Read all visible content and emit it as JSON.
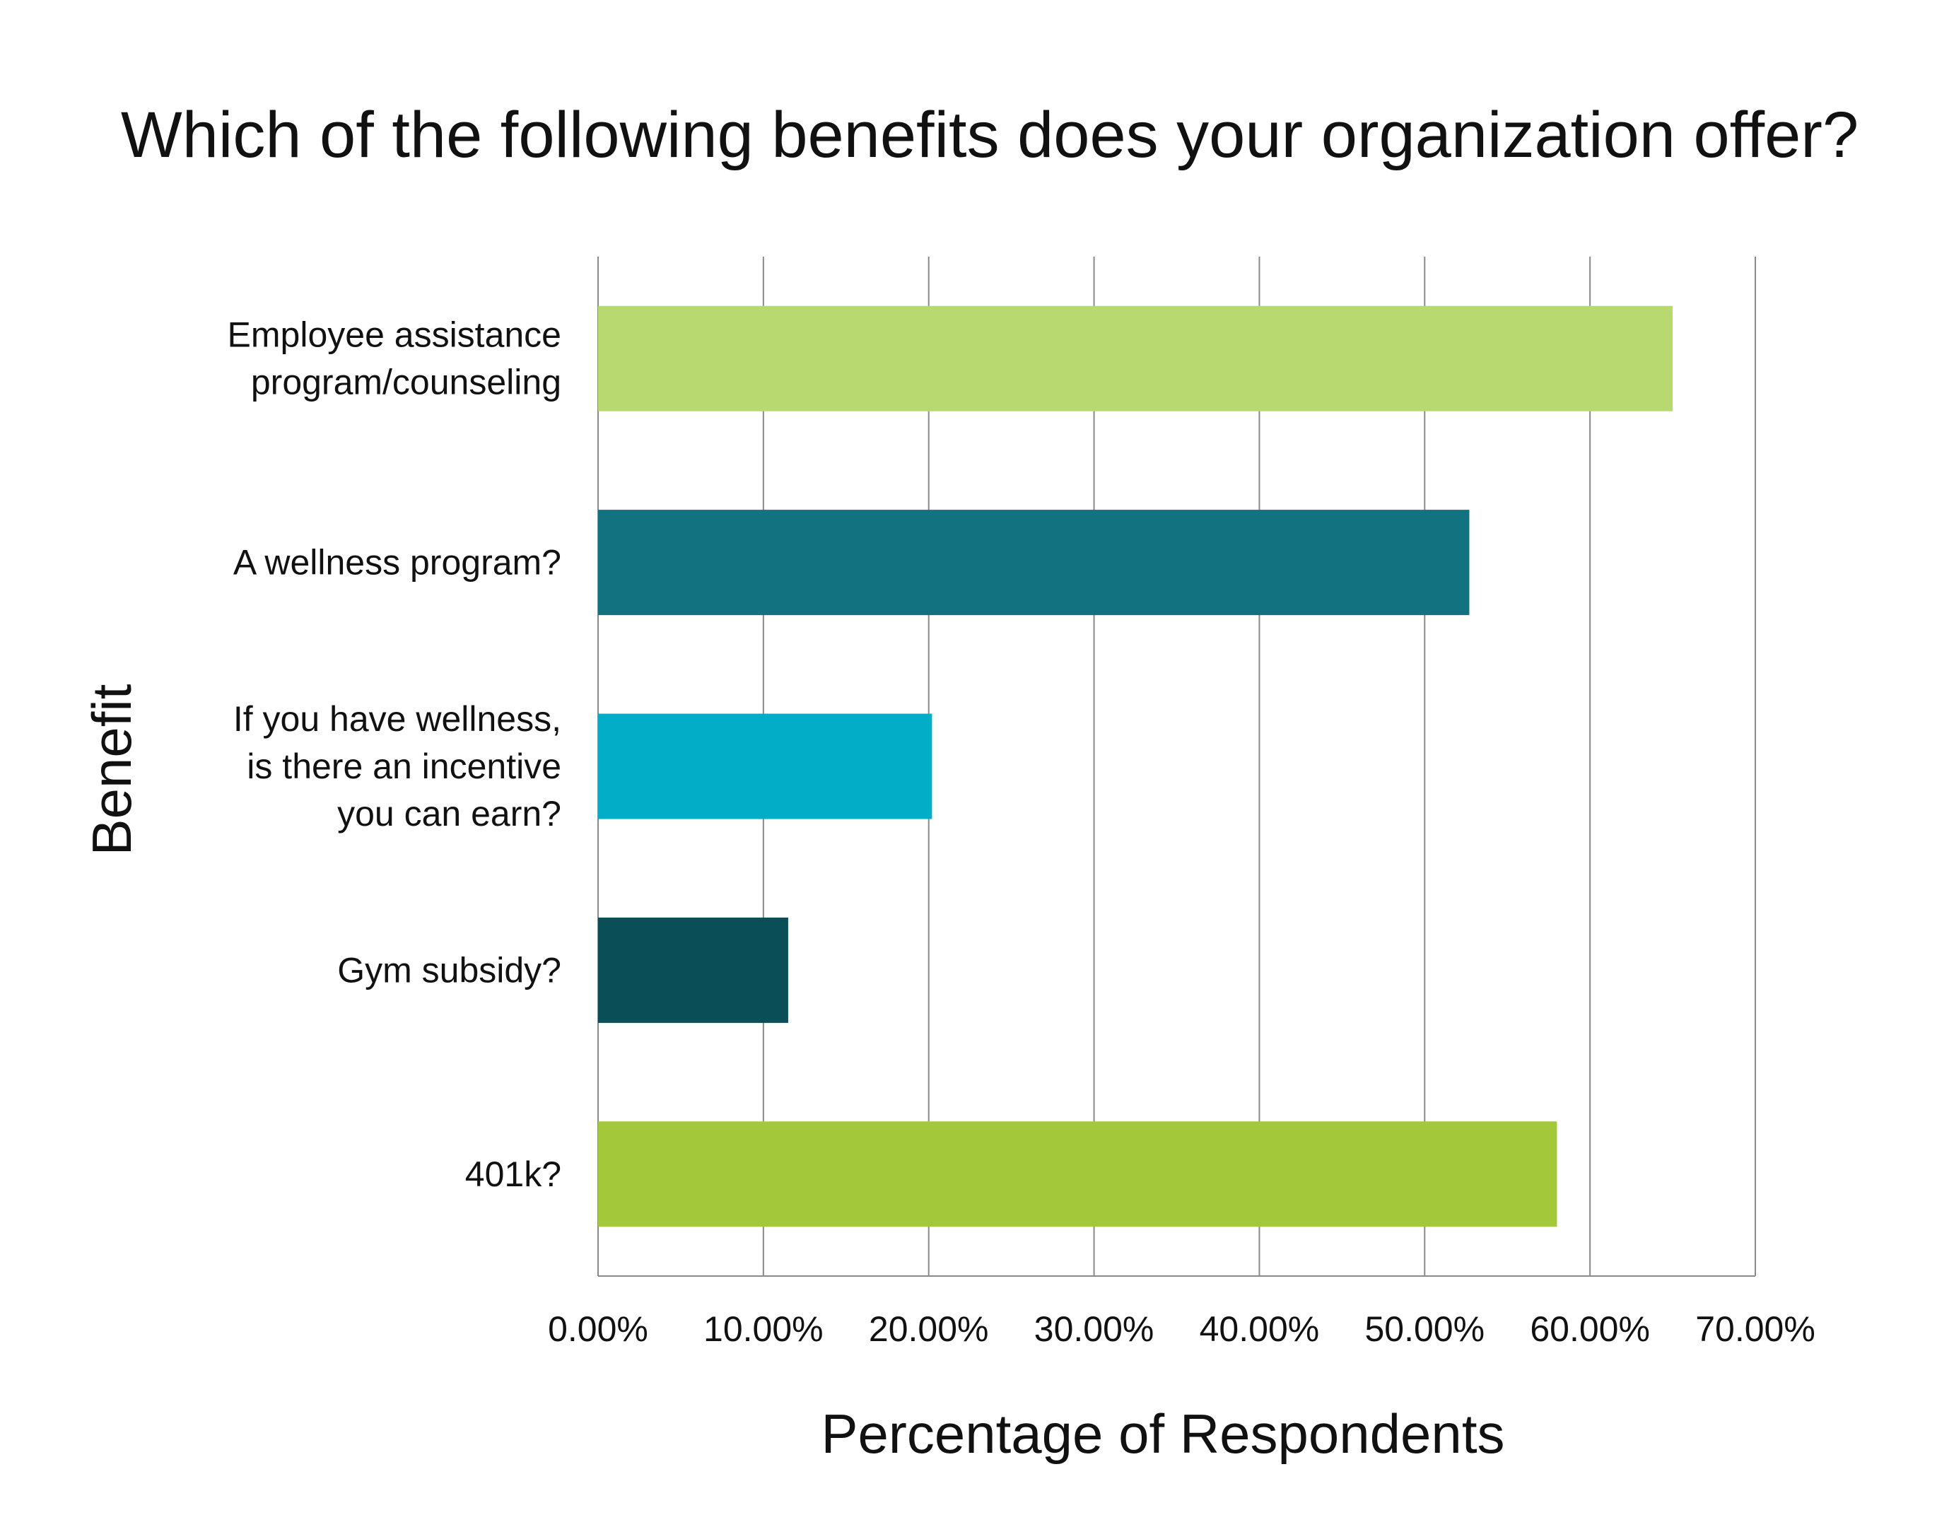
{
  "chart_data": {
    "type": "bar",
    "orientation": "horizontal",
    "title": "Which of the following benefits does your organization offer?",
    "xlabel": "Percentage of Respondents",
    "ylabel": "Benefit",
    "xlim": [
      0,
      70
    ],
    "xticks": [
      "0.00%",
      "10.00%",
      "20.00%",
      "30.00%",
      "40.00%",
      "50.00%",
      "60.00%",
      "70.00%"
    ],
    "grid": true,
    "categories": [
      [
        "Employee assistance",
        "program/counseling"
      ],
      [
        "A wellness program?"
      ],
      [
        "If you have wellness,",
        "is there an incentive",
        "you can earn?"
      ],
      [
        "Gym subsidy?"
      ],
      [
        "401k?"
      ]
    ],
    "values": [
      65.0,
      52.7,
      20.2,
      11.5,
      58.0
    ],
    "colors": [
      "#b8d970",
      "#137280",
      "#02adc8",
      "#0a4f57",
      "#a3c83a"
    ]
  }
}
